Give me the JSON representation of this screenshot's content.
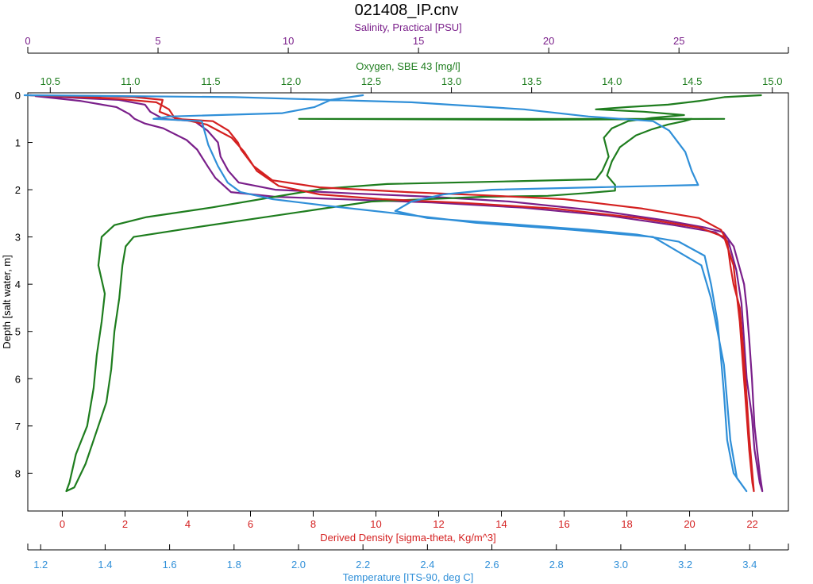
{
  "title": "021408_IP.cnv",
  "colors": {
    "salinity": "#7a1f8a",
    "oxygen": "#1e7d1e",
    "density": "#d42020",
    "temperature": "#2f8fd8",
    "axis": "#000000"
  },
  "chart_data": {
    "type": "line",
    "title": "021408_IP.cnv",
    "grid": false,
    "y_axis": {
      "label": "Depth [salt water, m]",
      "range": [
        -0.05,
        8.8
      ],
      "inverted": true,
      "ticks": [
        0,
        1,
        2,
        3,
        4,
        5,
        6,
        7,
        8
      ]
    },
    "x_axes": [
      {
        "id": "salinity",
        "label": "Salinity, Practical [PSU]",
        "position": "top",
        "range": [
          0,
          29.2
        ],
        "ticks": [
          0,
          5,
          10,
          15,
          20,
          25
        ],
        "color": "#7a1f8a"
      },
      {
        "id": "oxygen",
        "label": "Oxygen, SBE 43 [mg/l]",
        "position": "top",
        "range": [
          10.36,
          15.1
        ],
        "ticks": [
          "10.5",
          "11.0",
          "11.5",
          "12.0",
          "12.5",
          "13.0",
          "13.5",
          "14.0",
          "14.5",
          "15.0"
        ],
        "color": "#1e7d1e"
      },
      {
        "id": "density",
        "label": "Derived Density [sigma-theta, Kg/m^3]",
        "position": "bottom",
        "range": [
          -1.1,
          23.15
        ],
        "ticks": [
          0,
          2,
          4,
          6,
          8,
          10,
          12,
          14,
          16,
          18,
          20,
          22
        ],
        "color": "#d42020"
      },
      {
        "id": "temperature",
        "label": "Temperature [ITS-90, deg C]",
        "position": "bottom",
        "range": [
          1.16,
          3.52
        ],
        "ticks": [
          "1.2",
          "1.4",
          "1.6",
          "1.8",
          "2.0",
          "2.2",
          "2.4",
          "2.6",
          "2.8",
          "3.0",
          "3.2",
          "3.4"
        ],
        "color": "#2f8fd8"
      }
    ],
    "series": [
      {
        "axis": "salinity",
        "points": [
          [
            0.1,
            0
          ],
          [
            2.0,
            0.06
          ],
          [
            3.5,
            0.1
          ],
          [
            4.5,
            0.2
          ],
          [
            4.7,
            0.35
          ],
          [
            5.2,
            0.5
          ],
          [
            6.4,
            0.55
          ],
          [
            6.9,
            0.75
          ],
          [
            7.3,
            1.0
          ],
          [
            7.4,
            1.3
          ],
          [
            7.7,
            1.6
          ],
          [
            8.1,
            1.85
          ],
          [
            9.5,
            2.0
          ],
          [
            12.5,
            2.08
          ],
          [
            15.5,
            2.15
          ],
          [
            18.5,
            2.25
          ],
          [
            22.0,
            2.45
          ],
          [
            24.5,
            2.65
          ],
          [
            26.0,
            2.8
          ],
          [
            26.7,
            2.9
          ],
          [
            27.1,
            3.2
          ],
          [
            27.3,
            3.6
          ],
          [
            27.5,
            4.0
          ],
          [
            27.6,
            4.5
          ],
          [
            27.7,
            5.2
          ],
          [
            27.8,
            6.0
          ],
          [
            27.9,
            7.0
          ],
          [
            28.1,
            8.0
          ],
          [
            28.2,
            8.38
          ],
          [
            28.1,
            8.2
          ],
          [
            27.9,
            7.5
          ],
          [
            27.8,
            6.8
          ],
          [
            27.6,
            6.0
          ],
          [
            27.5,
            5.2
          ],
          [
            27.4,
            4.4
          ],
          [
            27.2,
            3.7
          ],
          [
            26.9,
            3.1
          ],
          [
            26.4,
            2.9
          ],
          [
            24.8,
            2.75
          ],
          [
            22.3,
            2.55
          ],
          [
            19.0,
            2.38
          ],
          [
            15.5,
            2.27
          ],
          [
            12.0,
            2.2
          ],
          [
            9.5,
            2.15
          ],
          [
            7.8,
            2.05
          ],
          [
            7.2,
            1.75
          ],
          [
            6.9,
            1.5
          ],
          [
            6.5,
            1.15
          ],
          [
            6.1,
            0.95
          ],
          [
            5.2,
            0.7
          ],
          [
            4.5,
            0.6
          ],
          [
            4.1,
            0.5
          ],
          [
            3.9,
            0.4
          ],
          [
            3.4,
            0.25
          ],
          [
            2.0,
            0.12
          ],
          [
            0.3,
            0.02
          ]
        ]
      },
      {
        "axis": "oxygen",
        "points": [
          [
            14.93,
            0
          ],
          [
            14.7,
            0.04
          ],
          [
            14.55,
            0.12
          ],
          [
            14.35,
            0.2
          ],
          [
            14.1,
            0.25
          ],
          [
            13.9,
            0.3
          ],
          [
            14.2,
            0.35
          ],
          [
            14.45,
            0.42
          ],
          [
            14.25,
            0.48
          ],
          [
            14.1,
            0.55
          ],
          [
            14.0,
            0.7
          ],
          [
            13.95,
            0.9
          ],
          [
            13.98,
            1.3
          ],
          [
            13.94,
            1.6
          ],
          [
            13.9,
            1.78
          ],
          [
            13.4,
            1.82
          ],
          [
            12.6,
            1.88
          ],
          [
            12.2,
            1.98
          ],
          [
            11.9,
            2.15
          ],
          [
            11.5,
            2.38
          ],
          [
            11.1,
            2.58
          ],
          [
            10.9,
            2.75
          ],
          [
            10.82,
            3.0
          ],
          [
            10.8,
            3.6
          ],
          [
            10.84,
            4.2
          ],
          [
            10.82,
            4.8
          ],
          [
            10.79,
            5.5
          ],
          [
            10.77,
            6.2
          ],
          [
            10.73,
            7.0
          ],
          [
            10.66,
            7.6
          ],
          [
            10.62,
            8.2
          ],
          [
            10.6,
            8.38
          ],
          [
            10.65,
            8.3
          ],
          [
            10.72,
            7.8
          ],
          [
            10.78,
            7.2
          ],
          [
            10.85,
            6.5
          ],
          [
            10.88,
            5.8
          ],
          [
            10.9,
            5.0
          ],
          [
            10.93,
            4.3
          ],
          [
            10.95,
            3.6
          ],
          [
            10.97,
            3.2
          ],
          [
            11.02,
            3.0
          ],
          [
            11.4,
            2.8
          ],
          [
            11.8,
            2.6
          ],
          [
            12.2,
            2.4
          ],
          [
            12.5,
            2.25
          ],
          [
            13.2,
            2.15
          ],
          [
            13.6,
            2.13
          ],
          [
            13.85,
            2.07
          ],
          [
            14.02,
            2.02
          ],
          [
            14.02,
            1.9
          ],
          [
            13.97,
            1.7
          ],
          [
            14.0,
            1.4
          ],
          [
            14.05,
            1.1
          ],
          [
            14.15,
            0.85
          ],
          [
            14.25,
            0.72
          ],
          [
            14.35,
            0.62
          ],
          [
            14.45,
            0.55
          ],
          [
            14.5,
            0.5
          ],
          [
            12.05,
            0.5
          ],
          [
            13.5,
            0.52
          ],
          [
            14.7,
            0.5
          ]
        ]
      },
      {
        "axis": "density",
        "points": [
          [
            -1.05,
            0
          ],
          [
            0.6,
            0.04
          ],
          [
            1.8,
            0.08
          ],
          [
            3.0,
            0.15
          ],
          [
            3.4,
            0.3
          ],
          [
            3.6,
            0.5
          ],
          [
            4.8,
            0.55
          ],
          [
            5.3,
            0.75
          ],
          [
            5.6,
            1.0
          ],
          [
            5.7,
            1.15
          ],
          [
            6.1,
            1.5
          ],
          [
            6.7,
            1.8
          ],
          [
            8.2,
            1.95
          ],
          [
            11.0,
            2.05
          ],
          [
            13.5,
            2.12
          ],
          [
            16.0,
            2.2
          ],
          [
            18.5,
            2.4
          ],
          [
            20.3,
            2.6
          ],
          [
            21.0,
            2.85
          ],
          [
            21.2,
            3.1
          ],
          [
            21.3,
            3.6
          ],
          [
            21.4,
            4.0
          ],
          [
            21.6,
            4.5
          ],
          [
            21.7,
            5.3
          ],
          [
            21.8,
            6.2
          ],
          [
            21.9,
            7.2
          ],
          [
            22.0,
            8.0
          ],
          [
            22.05,
            8.38
          ],
          [
            22.0,
            8.2
          ],
          [
            21.9,
            7.5
          ],
          [
            21.8,
            6.6
          ],
          [
            21.7,
            5.7
          ],
          [
            21.6,
            4.8
          ],
          [
            21.5,
            4.2
          ],
          [
            21.4,
            3.6
          ],
          [
            21.1,
            3.0
          ],
          [
            20.3,
            2.8
          ],
          [
            18.4,
            2.6
          ],
          [
            15.7,
            2.4
          ],
          [
            12.8,
            2.28
          ],
          [
            10.2,
            2.2
          ],
          [
            8.2,
            2.1
          ],
          [
            6.9,
            1.92
          ],
          [
            6.2,
            1.6
          ],
          [
            5.8,
            1.2
          ],
          [
            5.4,
            0.9
          ],
          [
            4.6,
            0.62
          ],
          [
            3.6,
            0.48
          ],
          [
            3.1,
            0.35
          ],
          [
            3.2,
            0.1
          ],
          [
            2.3,
            0.04
          ],
          [
            0.5,
            0.01
          ]
        ]
      },
      {
        "axis": "temperature",
        "points": [
          [
            1.15,
            0.0
          ],
          [
            1.8,
            0.04
          ],
          [
            2.35,
            0.15
          ],
          [
            2.7,
            0.3
          ],
          [
            2.9,
            0.45
          ],
          [
            3.1,
            0.55
          ],
          [
            3.15,
            0.75
          ],
          [
            3.2,
            1.2
          ],
          [
            3.22,
            1.6
          ],
          [
            3.24,
            1.9
          ],
          [
            2.6,
            2.0
          ],
          [
            2.45,
            2.1
          ],
          [
            2.35,
            2.25
          ],
          [
            2.3,
            2.45
          ],
          [
            2.4,
            2.6
          ],
          [
            2.7,
            2.75
          ],
          [
            2.9,
            2.85
          ],
          [
            3.05,
            2.95
          ],
          [
            3.18,
            3.1
          ],
          [
            3.26,
            3.4
          ],
          [
            3.28,
            4.0
          ],
          [
            3.3,
            4.8
          ],
          [
            3.31,
            5.5
          ],
          [
            3.32,
            6.3
          ],
          [
            3.33,
            7.3
          ],
          [
            3.35,
            8.0
          ],
          [
            3.39,
            8.38
          ],
          [
            3.36,
            8.1
          ],
          [
            3.34,
            7.3
          ],
          [
            3.33,
            6.5
          ],
          [
            3.32,
            5.7
          ],
          [
            3.3,
            5.0
          ],
          [
            3.28,
            4.3
          ],
          [
            3.25,
            3.6
          ],
          [
            3.1,
            3.0
          ],
          [
            2.85,
            2.85
          ],
          [
            2.55,
            2.7
          ],
          [
            2.3,
            2.5
          ],
          [
            2.1,
            2.35
          ],
          [
            1.92,
            2.2
          ],
          [
            1.82,
            2.05
          ],
          [
            1.78,
            1.85
          ],
          [
            1.75,
            1.5
          ],
          [
            1.72,
            1.05
          ],
          [
            1.7,
            0.55
          ],
          [
            1.55,
            0.5
          ],
          [
            1.6,
            0.45
          ],
          [
            1.95,
            0.38
          ],
          [
            2.05,
            0.25
          ],
          [
            2.1,
            0.1
          ],
          [
            2.2,
            0.0
          ]
        ]
      }
    ]
  }
}
